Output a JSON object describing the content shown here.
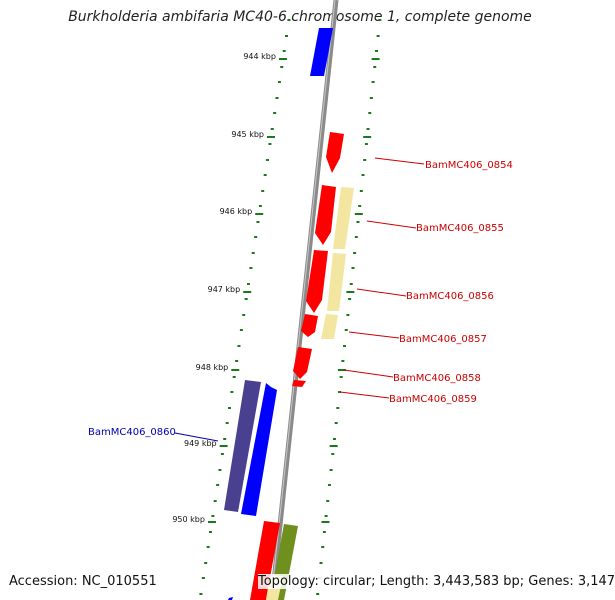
{
  "title": "Burkholderia ambifaria MC40-6 chromosome 1, complete genome",
  "footer": {
    "accession": "Accession: NC_010551",
    "summary": "Topology: circular; Length: 3,443,583 bp; Genes: 3,147"
  },
  "colors": {
    "backbone": "#8a8a8a",
    "tick_major": "#1a7a1a",
    "tick_minor": "#1a7a1a",
    "gene_red": "#ff0000",
    "gene_blue": "#0000ff",
    "gene_slate": "#4a4090",
    "gene_yellow": "#f2e6a0",
    "gene_olive": "#6f8f1f",
    "label_red": "#cc0000",
    "label_blue": "#0000aa"
  },
  "axis": {
    "tick_labels": [
      "944 kbp",
      "945 kbp",
      "946 kbp",
      "947 kbp",
      "948 kbp",
      "949 kbp",
      "950 kbp"
    ]
  },
  "genes": [
    {
      "name": "BamMC406_0854",
      "color": "gene_red"
    },
    {
      "name": "BamMC406_0855",
      "color": "gene_red"
    },
    {
      "name": "BamMC406_0856",
      "color": "gene_red"
    },
    {
      "name": "BamMC406_0857",
      "color": "gene_red"
    },
    {
      "name": "BamMC406_0858",
      "color": "gene_red"
    },
    {
      "name": "BamMC406_0859",
      "color": "gene_red"
    },
    {
      "name": "BamMC406_0860",
      "color": "gene_blue"
    }
  ]
}
